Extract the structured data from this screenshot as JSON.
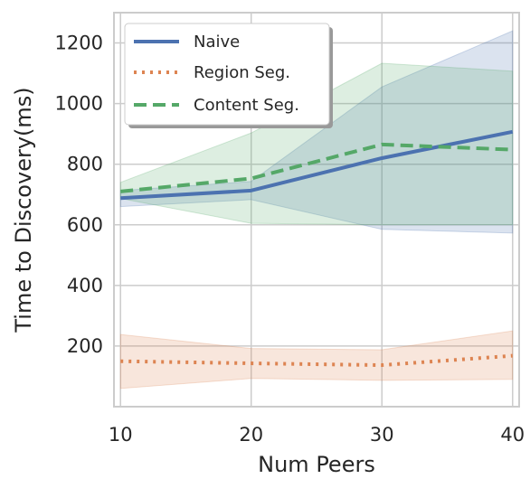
{
  "chart_data": {
    "type": "line",
    "title": "",
    "xlabel": "Num Peers",
    "ylabel": "Time to Discovery(ms)",
    "x": [
      10,
      20,
      30,
      40
    ],
    "xticks": [
      "10",
      "20",
      "30",
      "40"
    ],
    "yticks": [
      "200",
      "400",
      "600",
      "800",
      "1000",
      "1200"
    ],
    "xlim": [
      9.5,
      40.5
    ],
    "ylim": [
      0,
      1300
    ],
    "grid": true,
    "legend_position": "top-left",
    "series": [
      {
        "name": "Naive",
        "values": [
          688,
          713,
          820,
          907
        ],
        "lower": [
          660,
          683,
          585,
          573
        ],
        "upper": [
          713,
          743,
          1055,
          1240
        ],
        "color": "#4c72b0",
        "style": "solid"
      },
      {
        "name": "Region Seg.",
        "values": [
          150,
          143,
          137,
          168
        ],
        "lower": [
          60,
          93,
          87,
          90
        ],
        "upper": [
          238,
          192,
          188,
          250
        ],
        "color": "#dd8452",
        "style": "dotted"
      },
      {
        "name": "Content Seg.",
        "values": [
          710,
          753,
          865,
          848
        ],
        "lower": [
          687,
          605,
          600,
          600
        ],
        "upper": [
          740,
          903,
          1133,
          1107
        ],
        "color": "#55a868",
        "style": "dashed"
      }
    ]
  }
}
